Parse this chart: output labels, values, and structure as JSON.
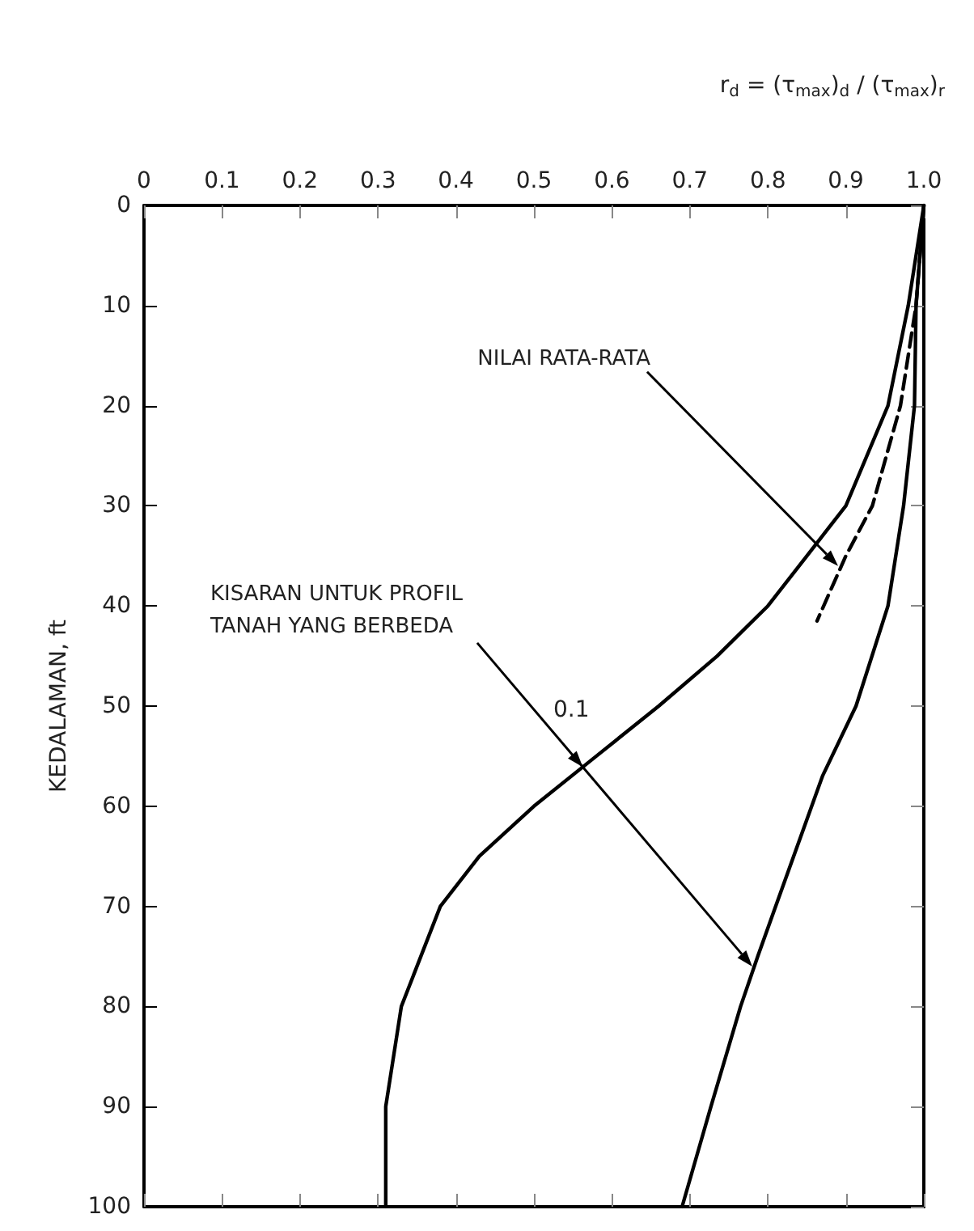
{
  "chart_data": {
    "type": "line",
    "xlabel": "r$_{d}$ = (τ$_{max}$)$_{d}$ / (τ$_{max}$)$_{r}$",
    "ylabel": "KEDALAMAN, ft",
    "xlim": [
      0,
      1
    ],
    "xticks": [
      0,
      0.1,
      0.2,
      0.3,
      0.4,
      0.5,
      0.6,
      0.7,
      0.8,
      0.9,
      {
        "value": 1,
        "label": "1.0"
      }
    ],
    "ylim": [
      100,
      0
    ],
    "yticks": [
      0,
      10,
      20,
      30,
      40,
      50,
      60,
      70,
      80,
      90,
      100
    ],
    "grid": false,
    "marker": "none",
    "series": [
      {
        "color": "#000000",
        "line_style": "solid",
        "x": [
          1,
          0.98,
          0.954,
          0.9,
          0.85,
          0.8,
          0.735,
          0.66,
          0.58,
          0.5,
          0.43,
          0.38,
          0.33,
          0.31,
          0.31
        ],
        "values": [
          0,
          10,
          20,
          30,
          35,
          40,
          45,
          50,
          55,
          60,
          65,
          70,
          80,
          90,
          100
        ]
      },
      {
        "color": "#000000",
        "line_style": "dashed",
        "x": [
          1,
          0.99,
          0.97,
          0.934,
          0.9,
          0.863
        ],
        "values": [
          0,
          10,
          20,
          30,
          35,
          41.5
        ]
      },
      {
        "color": "#000000",
        "line_style": "solid",
        "x": [
          1,
          0.99,
          0.988,
          0.974,
          0.954,
          0.913,
          0.87,
          0.81,
          0.787,
          0.765,
          0.727,
          0.69
        ],
        "values": [
          0,
          10,
          20,
          30,
          40,
          50,
          57,
          70,
          75,
          80,
          90,
          100
        ]
      }
    ],
    "annotations": [
      "NILAI RATA-RATA",
      "KISARAN UNTUK PROFIL\nTANAH YANG BERBEDA",
      "0.1"
    ]
  }
}
